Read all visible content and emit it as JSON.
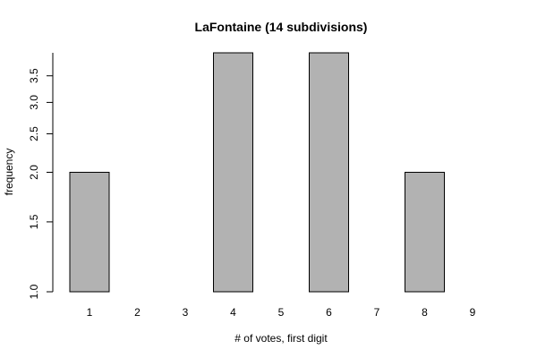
{
  "chart_data": {
    "type": "bar",
    "title": "LaFontaine (14 subdivisions)",
    "xlabel": "# of votes, first digit",
    "ylabel": "frequency",
    "categories": [
      "1",
      "2",
      "3",
      "4",
      "5",
      "6",
      "7",
      "8",
      "9"
    ],
    "values": [
      2,
      0,
      0,
      4,
      1,
      4,
      1,
      2,
      0
    ],
    "y_scale": "log",
    "ylim": [
      1.0,
      4.0
    ],
    "yticks": [
      "1.0",
      "1.5",
      "2.0",
      "2.5",
      "3.0",
      "3.5"
    ],
    "bar_color": "#b2b2b2",
    "grid": false,
    "legend": "none"
  }
}
